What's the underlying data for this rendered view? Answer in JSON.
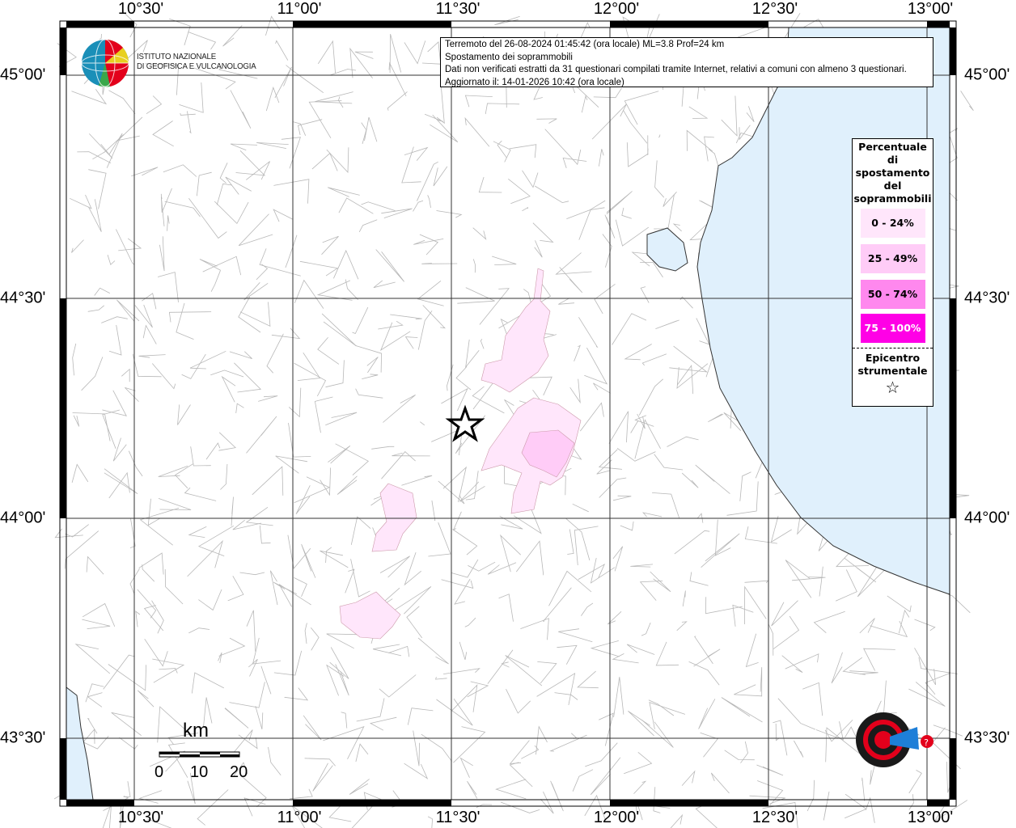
{
  "map": {
    "lon_labels": [
      "10°30'",
      "11°00'",
      "11°30'",
      "12°00'",
      "12°30'",
      "13°00'"
    ],
    "lat_labels": [
      "45°00'",
      "44°30'",
      "44°00'",
      "43°30'"
    ],
    "sea_color": "#e0f0fc",
    "epicenter_icon": "star-icon"
  },
  "info": {
    "line1": "Terremoto del 26-08-2024 01:45:42 (ora locale) ML=3.8 Prof=24 km",
    "line2": "Spostamento dei soprammobili",
    "line3": "Dati non verificati estratti da 31 questionari compilati tramite Internet, relativi a comuni con almeno 3 questionari.",
    "line4": "Aggiornato il: 14-01-2026 10:42 (ora locale)"
  },
  "legend": {
    "title_lines": [
      "Percentuale",
      "di",
      "spostamento",
      "del",
      "soprammobili"
    ],
    "classes": [
      {
        "label": "0 - 24%",
        "color": "#ffe6fb",
        "text_color": "#000"
      },
      {
        "label": "25 - 49%",
        "color": "#ffccf7",
        "text_color": "#000"
      },
      {
        "label": "50 - 74%",
        "color": "#ff88ee",
        "text_color": "#000"
      },
      {
        "label": "75 - 100%",
        "color": "#ff00e6",
        "text_color": "#fff"
      }
    ],
    "epicenter_lines": [
      "Epicentro",
      "strumentale"
    ],
    "epicenter_symbol": "☆"
  },
  "logo": {
    "line1": "ISTITUTO NAZIONALE",
    "line2": "DI GEOFISICA E VULCANOLOGIA"
  },
  "hsit_logo": "www.haisentitoilterremoto.it",
  "scale": {
    "unit": "km",
    "ticks": [
      "0",
      "10",
      "20"
    ]
  }
}
